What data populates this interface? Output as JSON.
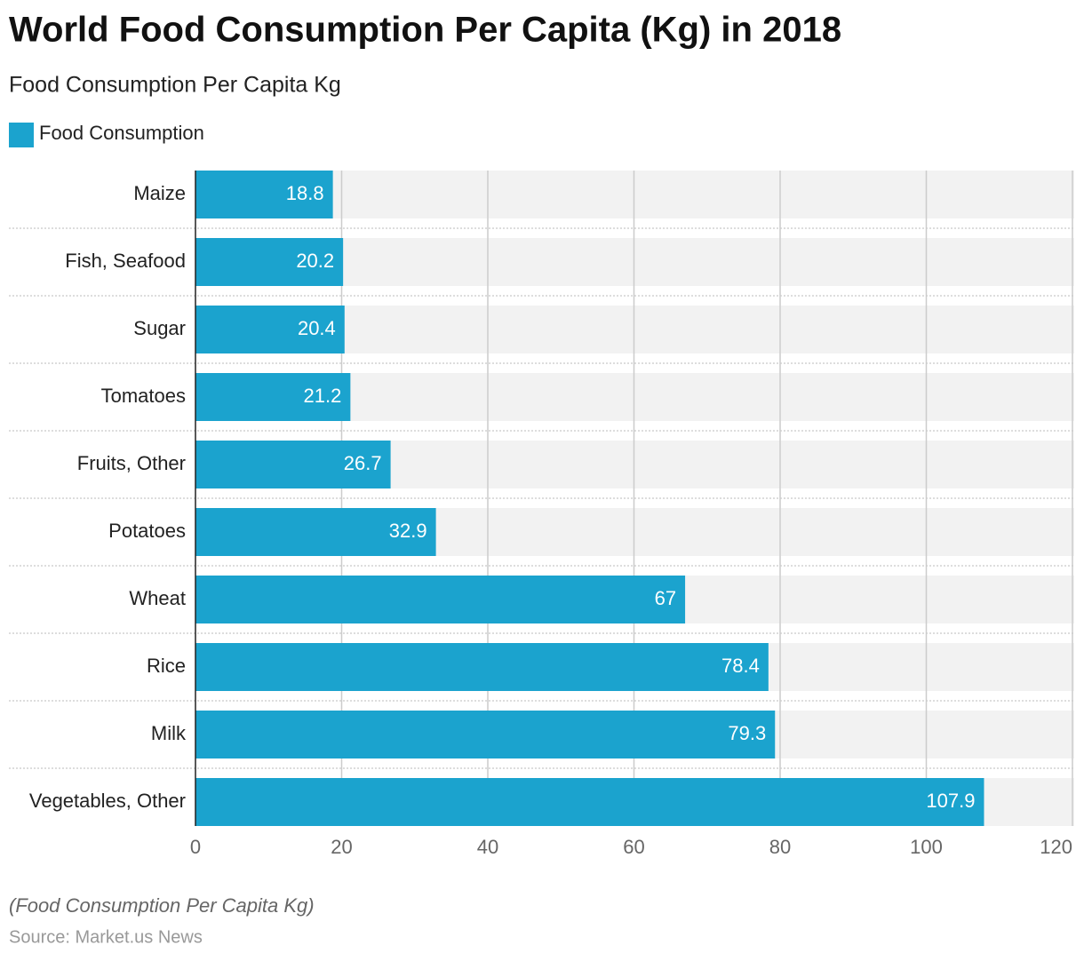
{
  "chart_data": {
    "type": "bar",
    "orientation": "horizontal",
    "title": "World Food Consumption Per Capita (Kg) in 2018",
    "subtitle": "Food Consumption Per Capita Kg",
    "categories": [
      "Maize",
      "Fish, Seafood",
      "Sugar",
      "Tomatoes",
      "Fruits, Other",
      "Potatoes",
      "Wheat",
      "Rice",
      "Milk",
      "Vegetables, Other"
    ],
    "series": [
      {
        "name": "Food Consumption",
        "color": "#1ba3ce",
        "values": [
          18.8,
          20.2,
          20.4,
          21.2,
          26.7,
          32.9,
          67,
          78.4,
          79.3,
          107.9
        ]
      }
    ],
    "xlim": [
      0,
      120
    ],
    "xticks": [
      0,
      20,
      40,
      60,
      80,
      100,
      120
    ],
    "grid": true,
    "note": "(Food Consumption Per Capita Kg)",
    "source": "Source: Market.us News"
  }
}
